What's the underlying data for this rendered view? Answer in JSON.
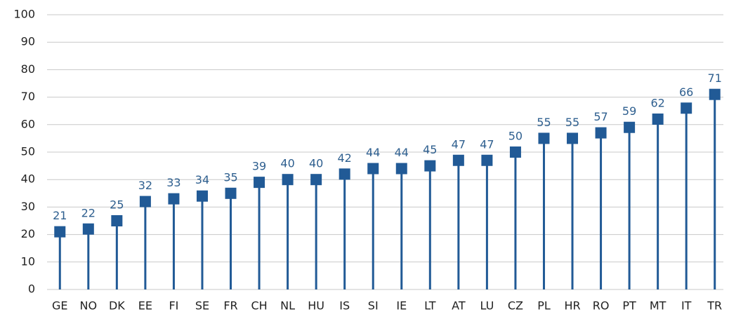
{
  "chart_data": {
    "type": "lollipop",
    "categories": [
      "GE",
      "NO",
      "DK",
      "EE",
      "FI",
      "SE",
      "FR",
      "CH",
      "NL",
      "HU",
      "IS",
      "SI",
      "IE",
      "LT",
      "AT",
      "LU",
      "CZ",
      "PL",
      "HR",
      "RO",
      "PT",
      "MT",
      "IT",
      "TR"
    ],
    "values": [
      21,
      22,
      25,
      32,
      33,
      34,
      35,
      39,
      40,
      40,
      42,
      44,
      44,
      45,
      47,
      47,
      50,
      55,
      55,
      57,
      59,
      62,
      66,
      71
    ],
    "color": "#215a96",
    "ylim": [
      0,
      100
    ],
    "yticks": [
      0,
      10,
      20,
      30,
      40,
      50,
      60,
      70,
      80,
      90,
      100
    ],
    "grid": true
  }
}
